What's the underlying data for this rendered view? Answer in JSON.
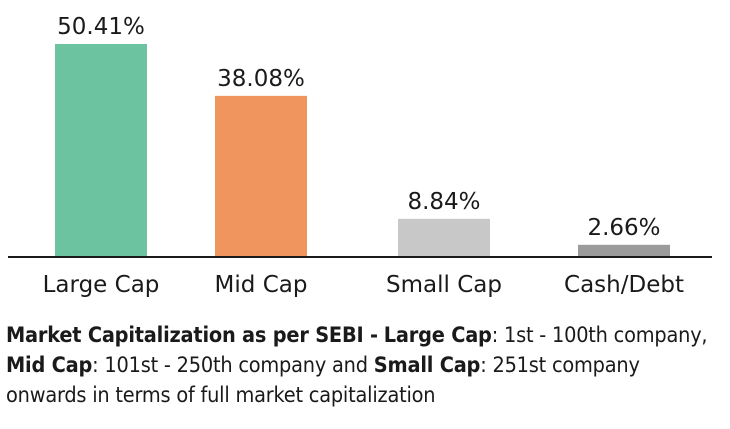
{
  "chart_data": {
    "type": "bar",
    "categories": [
      "Large Cap",
      "Mid Cap",
      "Small Cap",
      "Cash/Debt"
    ],
    "values": [
      50.41,
      38.08,
      8.84,
      2.66
    ],
    "value_labels": [
      "50.41%",
      "38.08%",
      "8.84%",
      "2.66%"
    ],
    "colors": [
      "#6cc3a0",
      "#f0955d",
      "#c8c8c8",
      "#9b9b9b"
    ],
    "ylim": [
      0,
      50.41
    ],
    "grid": false,
    "legend": "none"
  },
  "note": {
    "heading": "Market Capitalization as per SEBI -",
    "large_label": "Large Cap",
    "large_range": ": 1st - 100th company,",
    "mid_label": "Mid Cap",
    "mid_range": ": 101st - 250th company and",
    "small_label": "Small Cap",
    "small_range": ": 251st company onwards in terms of full market capitalization"
  }
}
